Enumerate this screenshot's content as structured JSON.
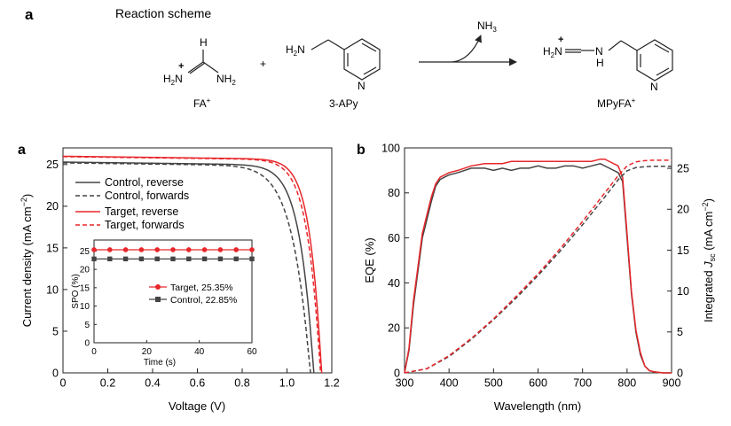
{
  "scheme": {
    "panel_letter": "a",
    "title": "Reaction scheme",
    "plus": "+",
    "byproduct": "NH",
    "byproduct_sub": "3",
    "reactant1": {
      "label": "FA",
      "label_sup": "+",
      "atom_h": "H",
      "atom_left": "H",
      "atom_left_sub": "2",
      "atom_left_n": "N",
      "atom_right": "NH",
      "atom_right_sub": "2",
      "charge": "+"
    },
    "reactant2": {
      "label": "3-APy",
      "atom_amine": "H",
      "atom_amine_sub": "2",
      "atom_amine_n": "N",
      "atom_ring": "N"
    },
    "product": {
      "label": "MPyFA",
      "label_sup": "+",
      "atom_left": "H",
      "atom_left_sub": "2",
      "atom_left_n": "N",
      "atom_nh": "N",
      "atom_nh_h": "H",
      "atom_ring": "N",
      "charge": "+"
    }
  },
  "chart_data": [
    {
      "type": "line",
      "panel_letter": "a",
      "xlabel": "Voltage (V)",
      "ylabel_main": "Current density (mA cm",
      "ylabel_sup": "−2",
      "ylabel_end": ")",
      "xlim": [
        0,
        1.2
      ],
      "ylim": [
        0,
        27
      ],
      "x_ticks": [
        "0",
        "0.2",
        "0.4",
        "0.6",
        "0.8",
        "1.0",
        "1.2"
      ],
      "y_ticks": [
        "0",
        "5",
        "10",
        "15",
        "20",
        "25"
      ],
      "legend": [
        {
          "name": "Control, reverse",
          "color": "#444444",
          "dash": false
        },
        {
          "name": "Control, forwards",
          "color": "#444444",
          "dash": true
        },
        {
          "name": "Target, reverse",
          "color": "#e8262a",
          "dash": false
        },
        {
          "name": "Target, forwards",
          "color": "#e8262a",
          "dash": true
        }
      ],
      "series": [
        {
          "name": "Control, reverse",
          "jsc": 25.3,
          "voc": 1.12,
          "n": 18
        },
        {
          "name": "Control, forwards",
          "jsc": 25.2,
          "voc": 1.105,
          "n": 14
        },
        {
          "name": "Target, reverse",
          "jsc": 26.0,
          "voc": 1.155,
          "n": 22
        },
        {
          "name": "Target, forwards",
          "jsc": 25.95,
          "voc": 1.15,
          "n": 20
        }
      ],
      "inset": {
        "xlabel": "Time (s)",
        "ylabel": "SPO (%)",
        "xlim": [
          0,
          60
        ],
        "ylim": [
          0,
          28
        ],
        "x_ticks": [
          "0",
          "20",
          "40",
          "60"
        ],
        "y_ticks": [
          "0",
          "5",
          "10",
          "15",
          "20",
          "25"
        ],
        "series": [
          {
            "name": "Target, 25.35%",
            "color": "#e8262a",
            "marker": "circle",
            "x": [
              0,
              6,
              12,
              18,
              24,
              30,
              36,
              42,
              48,
              54,
              60
            ],
            "y": [
              25.35,
              25.35,
              25.35,
              25.35,
              25.35,
              25.35,
              25.35,
              25.35,
              25.35,
              25.35,
              25.35
            ]
          },
          {
            "name": "Control, 22.85%",
            "color": "#444444",
            "marker": "square",
            "x": [
              0,
              6,
              12,
              18,
              24,
              30,
              36,
              42,
              48,
              54,
              60
            ],
            "y": [
              22.85,
              22.85,
              22.85,
              22.85,
              22.85,
              22.85,
              22.85,
              22.85,
              22.85,
              22.85,
              22.85
            ]
          }
        ]
      }
    },
    {
      "type": "line",
      "panel_letter": "b",
      "xlabel": "Wavelength (nm)",
      "ylabel_left": "EQE (%)",
      "ylabel_right_main": "Integrated ",
      "ylabel_right_j": "J",
      "ylabel_right_sub": "sc",
      "ylabel_right_units": " (mA cm",
      "ylabel_right_sup": "−2",
      "ylabel_right_end": ")",
      "xlim": [
        300,
        900
      ],
      "ylim_left": [
        0,
        100
      ],
      "ylim_right": [
        0,
        27.5
      ],
      "x_ticks": [
        "300",
        "400",
        "500",
        "600",
        "700",
        "800",
        "900"
      ],
      "y_ticks_left": [
        "0",
        "20",
        "40",
        "60",
        "80",
        "100"
      ],
      "y_ticks_right": [
        "0",
        "5",
        "10",
        "15",
        "20",
        "25"
      ],
      "series": [
        {
          "name": "Control EQE",
          "color": "#444444",
          "axis": "left",
          "x": [
            300,
            310,
            320,
            330,
            340,
            350,
            360,
            370,
            380,
            400,
            420,
            450,
            480,
            500,
            520,
            540,
            560,
            580,
            600,
            620,
            640,
            660,
            680,
            700,
            720,
            740,
            760,
            780,
            790,
            800,
            810,
            820,
            830,
            840,
            850,
            860,
            880,
            900
          ],
          "y": [
            0,
            10,
            30,
            45,
            60,
            68,
            76,
            83,
            86,
            88,
            89,
            91,
            91,
            90,
            91,
            90,
            91,
            91,
            92,
            91,
            91,
            92,
            92,
            91,
            92,
            93,
            91,
            89,
            85,
            60,
            35,
            18,
            8,
            3,
            1,
            0.5,
            0,
            0
          ]
        },
        {
          "name": "Target EQE",
          "color": "#e8262a",
          "axis": "left",
          "x": [
            300,
            310,
            320,
            330,
            340,
            350,
            360,
            370,
            380,
            400,
            420,
            450,
            480,
            500,
            520,
            540,
            560,
            580,
            600,
            620,
            640,
            660,
            680,
            700,
            720,
            740,
            750,
            760,
            780,
            790,
            800,
            810,
            820,
            830,
            840,
            850,
            860,
            880,
            900
          ],
          "y": [
            0,
            11,
            32,
            47,
            62,
            70,
            78,
            84,
            87,
            89,
            90,
            92,
            93,
            93,
            93,
            94,
            94,
            94,
            94,
            94,
            94,
            94,
            94,
            94,
            94,
            95,
            95,
            94,
            92,
            87,
            62,
            36,
            19,
            9,
            3,
            1,
            0.5,
            0,
            0
          ]
        },
        {
          "name": "Control integrated Jsc",
          "color": "#444444",
          "axis": "right",
          "dash": true,
          "x": [
            300,
            350,
            400,
            450,
            500,
            550,
            600,
            650,
            700,
            750,
            780,
            800,
            820,
            840,
            860,
            900
          ],
          "y": [
            0,
            0.5,
            2.0,
            4.1,
            6.5,
            9.1,
            11.9,
            14.9,
            18.1,
            21.5,
            23.6,
            24.7,
            25.1,
            25.2,
            25.25,
            25.25
          ]
        },
        {
          "name": "Target integrated Jsc",
          "color": "#e8262a",
          "axis": "right",
          "dash": true,
          "x": [
            300,
            350,
            400,
            450,
            500,
            550,
            600,
            650,
            700,
            750,
            780,
            800,
            820,
            840,
            860,
            900
          ],
          "y": [
            0,
            0.5,
            2.1,
            4.2,
            6.6,
            9.3,
            12.1,
            15.2,
            18.5,
            22.0,
            24.1,
            25.3,
            25.8,
            25.95,
            26.0,
            26.0
          ]
        }
      ]
    }
  ]
}
